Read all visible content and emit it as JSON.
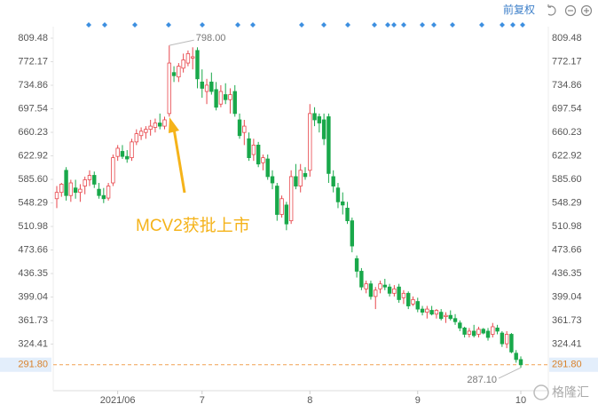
{
  "chart_data": {
    "type": "candlestick",
    "toolbar_label": "前复权",
    "annotation": "MCV2获批上市",
    "watermark": "格隆汇",
    "up_color": "#e8474c",
    "down_color": "#19a84a",
    "categories": [
      null,
      null,
      null,
      null,
      null,
      null,
      null,
      null,
      null,
      null,
      null,
      null,
      null,
      "2021/06",
      null,
      null,
      null,
      null,
      null,
      null,
      null,
      null,
      null,
      null,
      null,
      null,
      null,
      null,
      null,
      null,
      null,
      "7",
      null,
      null,
      null,
      null,
      null,
      null,
      null,
      null,
      null,
      null,
      null,
      null,
      null,
      null,
      null,
      null,
      null,
      null,
      null,
      null,
      null,
      null,
      "8",
      null,
      null,
      null,
      null,
      null,
      null,
      null,
      null,
      null,
      null,
      null,
      null,
      null,
      null,
      null,
      null,
      null,
      null,
      null,
      null,
      null,
      null,
      "9",
      null,
      null,
      null,
      null,
      null,
      null,
      null,
      null,
      null,
      null,
      null,
      null,
      null,
      null,
      null,
      null,
      null,
      null,
      null,
      null,
      null,
      "10"
    ],
    "open": [
      555,
      565,
      600,
      560,
      572,
      565,
      575,
      585,
      592,
      570,
      560,
      556,
      580,
      622,
      630,
      622,
      620,
      645,
      655,
      660,
      665,
      668,
      675,
      670,
      690,
      755,
      748,
      762,
      770,
      778,
      790,
      740,
      725,
      740,
      728,
      705,
      720,
      712,
      725,
      680,
      660,
      650,
      625,
      640,
      612,
      618,
      590,
      575,
      530,
      545,
      520,
      590,
      575,
      595,
      600,
      690,
      685,
      680,
      685,
      590,
      572,
      550,
      540,
      520,
      460,
      440,
      412,
      420,
      400,
      412,
      418,
      415,
      405,
      415,
      398,
      405,
      388,
      392,
      380,
      375,
      378,
      372,
      375,
      368,
      370,
      365,
      358,
      350,
      340,
      345,
      340,
      348,
      345,
      340,
      350,
      342,
      325,
      340,
      310,
      300
    ],
    "high": [
      575,
      580,
      605,
      585,
      585,
      578,
      590,
      600,
      598,
      580,
      572,
      580,
      625,
      640,
      640,
      632,
      650,
      665,
      668,
      670,
      680,
      682,
      690,
      685,
      798,
      765,
      770,
      785,
      790,
      795,
      795,
      760,
      745,
      755,
      740,
      735,
      738,
      730,
      735,
      690,
      680,
      660,
      650,
      645,
      625,
      625,
      600,
      580,
      560,
      550,
      600,
      610,
      610,
      605,
      705,
      700,
      690,
      690,
      690,
      600,
      580,
      565,
      550,
      525,
      465,
      445,
      425,
      425,
      415,
      425,
      428,
      420,
      418,
      420,
      410,
      408,
      400,
      398,
      385,
      385,
      385,
      380,
      380,
      375,
      378,
      372,
      362,
      352,
      350,
      355,
      352,
      350,
      350,
      358,
      355,
      345,
      345,
      342,
      315,
      305
    ],
    "low": [
      540,
      558,
      552,
      550,
      555,
      550,
      562,
      575,
      572,
      555,
      548,
      552,
      575,
      615,
      618,
      612,
      615,
      640,
      648,
      650,
      655,
      660,
      665,
      665,
      685,
      740,
      740,
      755,
      765,
      760,
      730,
      715,
      705,
      720,
      695,
      700,
      705,
      690,
      685,
      650,
      640,
      615,
      615,
      605,
      600,
      585,
      570,
      520,
      525,
      505,
      515,
      570,
      565,
      585,
      590,
      670,
      660,
      640,
      580,
      565,
      540,
      530,
      515,
      470,
      430,
      410,
      405,
      395,
      380,
      405,
      410,
      400,
      400,
      390,
      388,
      380,
      385,
      375,
      370,
      365,
      370,
      365,
      362,
      358,
      362,
      355,
      345,
      335,
      335,
      335,
      335,
      340,
      330,
      335,
      340,
      320,
      318,
      310,
      295,
      287.1
    ],
    "close": [
      565,
      578,
      560,
      580,
      565,
      570,
      585,
      592,
      578,
      560,
      555,
      575,
      620,
      635,
      622,
      618,
      645,
      658,
      662,
      665,
      670,
      675,
      670,
      680,
      770,
      750,
      765,
      775,
      785,
      780,
      745,
      730,
      735,
      725,
      700,
      725,
      712,
      720,
      690,
      655,
      670,
      620,
      640,
      610,
      620,
      590,
      580,
      530,
      555,
      515,
      590,
      575,
      600,
      590,
      690,
      680,
      675,
      650,
      595,
      575,
      550,
      545,
      520,
      480,
      440,
      415,
      420,
      400,
      410,
      420,
      415,
      405,
      412,
      395,
      405,
      385,
      395,
      380,
      375,
      380,
      372,
      378,
      365,
      370,
      365,
      360,
      350,
      340,
      345,
      338,
      348,
      342,
      335,
      352,
      345,
      325,
      340,
      312,
      300,
      291.8
    ],
    "ylim": [
      250.6,
      827.78
    ],
    "yticks": [
      809.48,
      772.17,
      734.86,
      697.54,
      660.23,
      622.92,
      {
        "value": 585.6,
        "label": "585.60"
      },
      548.29,
      510.98,
      473.66,
      436.35,
      399.04,
      361.73,
      324.41
    ],
    "last_price": {
      "value": 291.8,
      "label": "291.80"
    },
    "max_label": {
      "value": 798,
      "label": "798.00"
    },
    "min_label": {
      "value": 287.1,
      "label": "287.10"
    },
    "grid": false
  }
}
